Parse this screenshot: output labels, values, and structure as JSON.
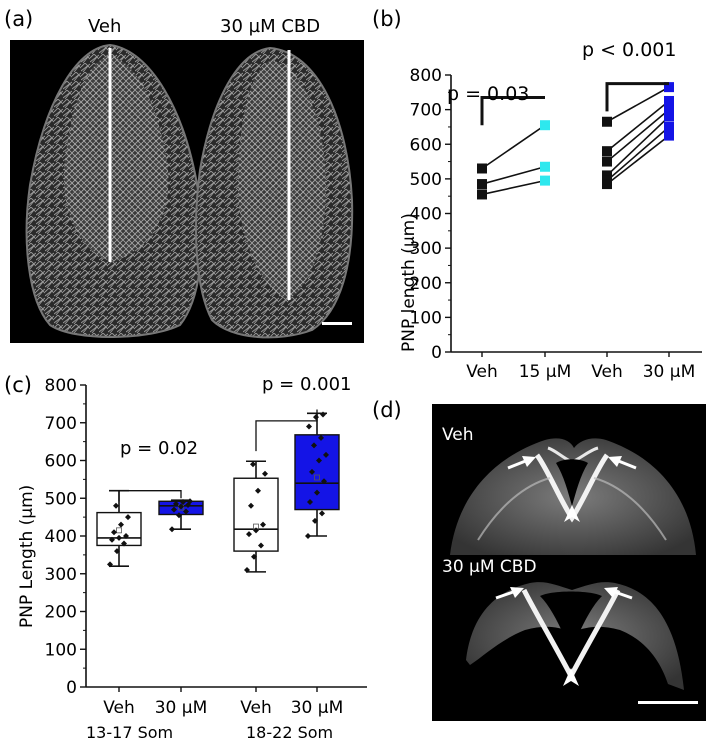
{
  "panels": {
    "a": {
      "letter": "(a)",
      "labels": [
        "Veh",
        "30 µM CBD"
      ]
    },
    "b": {
      "letter": "(b)",
      "p_values": [
        "p = 0.03",
        "p < 0.001"
      ]
    },
    "c": {
      "letter": "(c)",
      "p_values": [
        "p = 0.02",
        "p = 0.001"
      ],
      "group_labels": [
        "13-17 Som",
        "18-22 Som"
      ]
    },
    "d": {
      "letter": "(d)",
      "labels": [
        "Veh",
        "30 µM CBD"
      ]
    }
  },
  "colors": {
    "cyan": "#2ee8ee",
    "blue": "#1414e6",
    "black": "#111111"
  },
  "chart_data": [
    {
      "type": "scatter",
      "panel": "b",
      "ylabel": "PNP length (µm)",
      "ylim": [
        0,
        800
      ],
      "yticks": [
        0,
        100,
        200,
        300,
        400,
        500,
        600,
        700,
        800
      ],
      "categories": [
        "Veh",
        "15 µM",
        "Veh",
        "30 µM"
      ],
      "paired_series": [
        {
          "group": "15 µM",
          "color_key": "cyan",
          "pairs": [
            [
              530,
              655
            ],
            [
              485,
              535
            ],
            [
              455,
              495
            ]
          ]
        },
        {
          "group": "30 µM",
          "color_key": "blue",
          "pairs": [
            [
              665,
              765
            ],
            [
              580,
              725
            ],
            [
              550,
              700
            ],
            [
              510,
              680
            ],
            [
              495,
              650
            ],
            [
              485,
              625
            ]
          ]
        }
      ]
    },
    {
      "type": "box",
      "panel": "c",
      "ylabel": "PNP Length (µm)",
      "ylim": [
        0,
        800
      ],
      "yticks": [
        0,
        100,
        200,
        300,
        400,
        500,
        600,
        700,
        800
      ],
      "categories": [
        "Veh",
        "30 µM",
        "Veh",
        "30 µM"
      ],
      "groups": [
        "13-17 Som",
        "13-17 Som",
        "18-22 Som",
        "18-22 Som"
      ],
      "boxes": [
        {
          "min": 320,
          "q1": 375,
          "median": 395,
          "mean": 415,
          "q3": 462,
          "max": 520,
          "fill_key": "none",
          "points": [
            325,
            360,
            380,
            390,
            395,
            400,
            410,
            430,
            450,
            480
          ]
        },
        {
          "min": 418,
          "q1": 457,
          "median": 480,
          "mean": 475,
          "q3": 492,
          "max": 495,
          "fill_key": "blue",
          "points": [
            418,
            455,
            465,
            470,
            478,
            482,
            485,
            490,
            492
          ]
        },
        {
          "min": 305,
          "q1": 360,
          "median": 418,
          "mean": 425,
          "q3": 553,
          "max": 598,
          "fill_key": "none",
          "points": [
            310,
            345,
            375,
            405,
            415,
            430,
            480,
            520,
            565,
            590
          ]
        },
        {
          "min": 400,
          "q1": 470,
          "median": 540,
          "mean": 555,
          "q3": 668,
          "max": 725,
          "fill_key": "blue",
          "points": [
            400,
            440,
            460,
            490,
            515,
            545,
            570,
            600,
            615,
            640,
            660,
            690,
            715,
            722
          ]
        }
      ]
    }
  ]
}
